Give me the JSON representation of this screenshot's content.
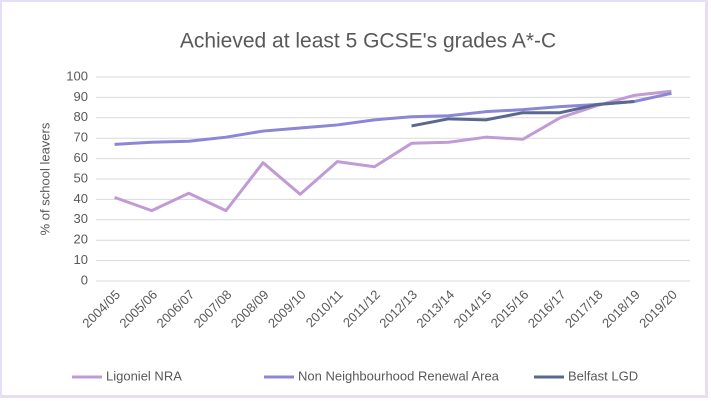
{
  "chart_data": {
    "type": "line",
    "title": "Achieved at least 5 GCSE's grades A*-C",
    "y_label": "% of school leavers",
    "categories": [
      "2004/05",
      "2005/06",
      "2006/07",
      "2007/08",
      "2008/09",
      "2009/10",
      "2010/11",
      "2011/12",
      "2012/13",
      "2013/14",
      "2014/15",
      "2015/16",
      "2016/17",
      "2017/18",
      "2018/19",
      "2019/20"
    ],
    "series": [
      {
        "name": "Ligoniel NRA",
        "color": "#c19bd6",
        "values": [
          41,
          34.5,
          43,
          34.5,
          58,
          42.5,
          58.5,
          56,
          67.5,
          68,
          70.5,
          69.5,
          80,
          86,
          91,
          93
        ]
      },
      {
        "name": "Non Neighbourhood Renewal Area",
        "color": "#8c86d6",
        "values": [
          67,
          68,
          68.5,
          70.5,
          73.5,
          75,
          76.5,
          79,
          80.5,
          81,
          83,
          84,
          85.5,
          86.5,
          88,
          92
        ]
      },
      {
        "name": "Belfast LGD",
        "color": "#5a6890",
        "values": [
          null,
          null,
          null,
          null,
          null,
          null,
          null,
          null,
          76,
          79.5,
          79,
          82.5,
          82.5,
          86.5,
          88,
          null
        ]
      }
    ],
    "ylim": [
      0,
      100
    ],
    "yticks": [
      0,
      10,
      20,
      30,
      40,
      50,
      60,
      70,
      80,
      90,
      100
    ],
    "grid": true,
    "legend": "bottom"
  }
}
